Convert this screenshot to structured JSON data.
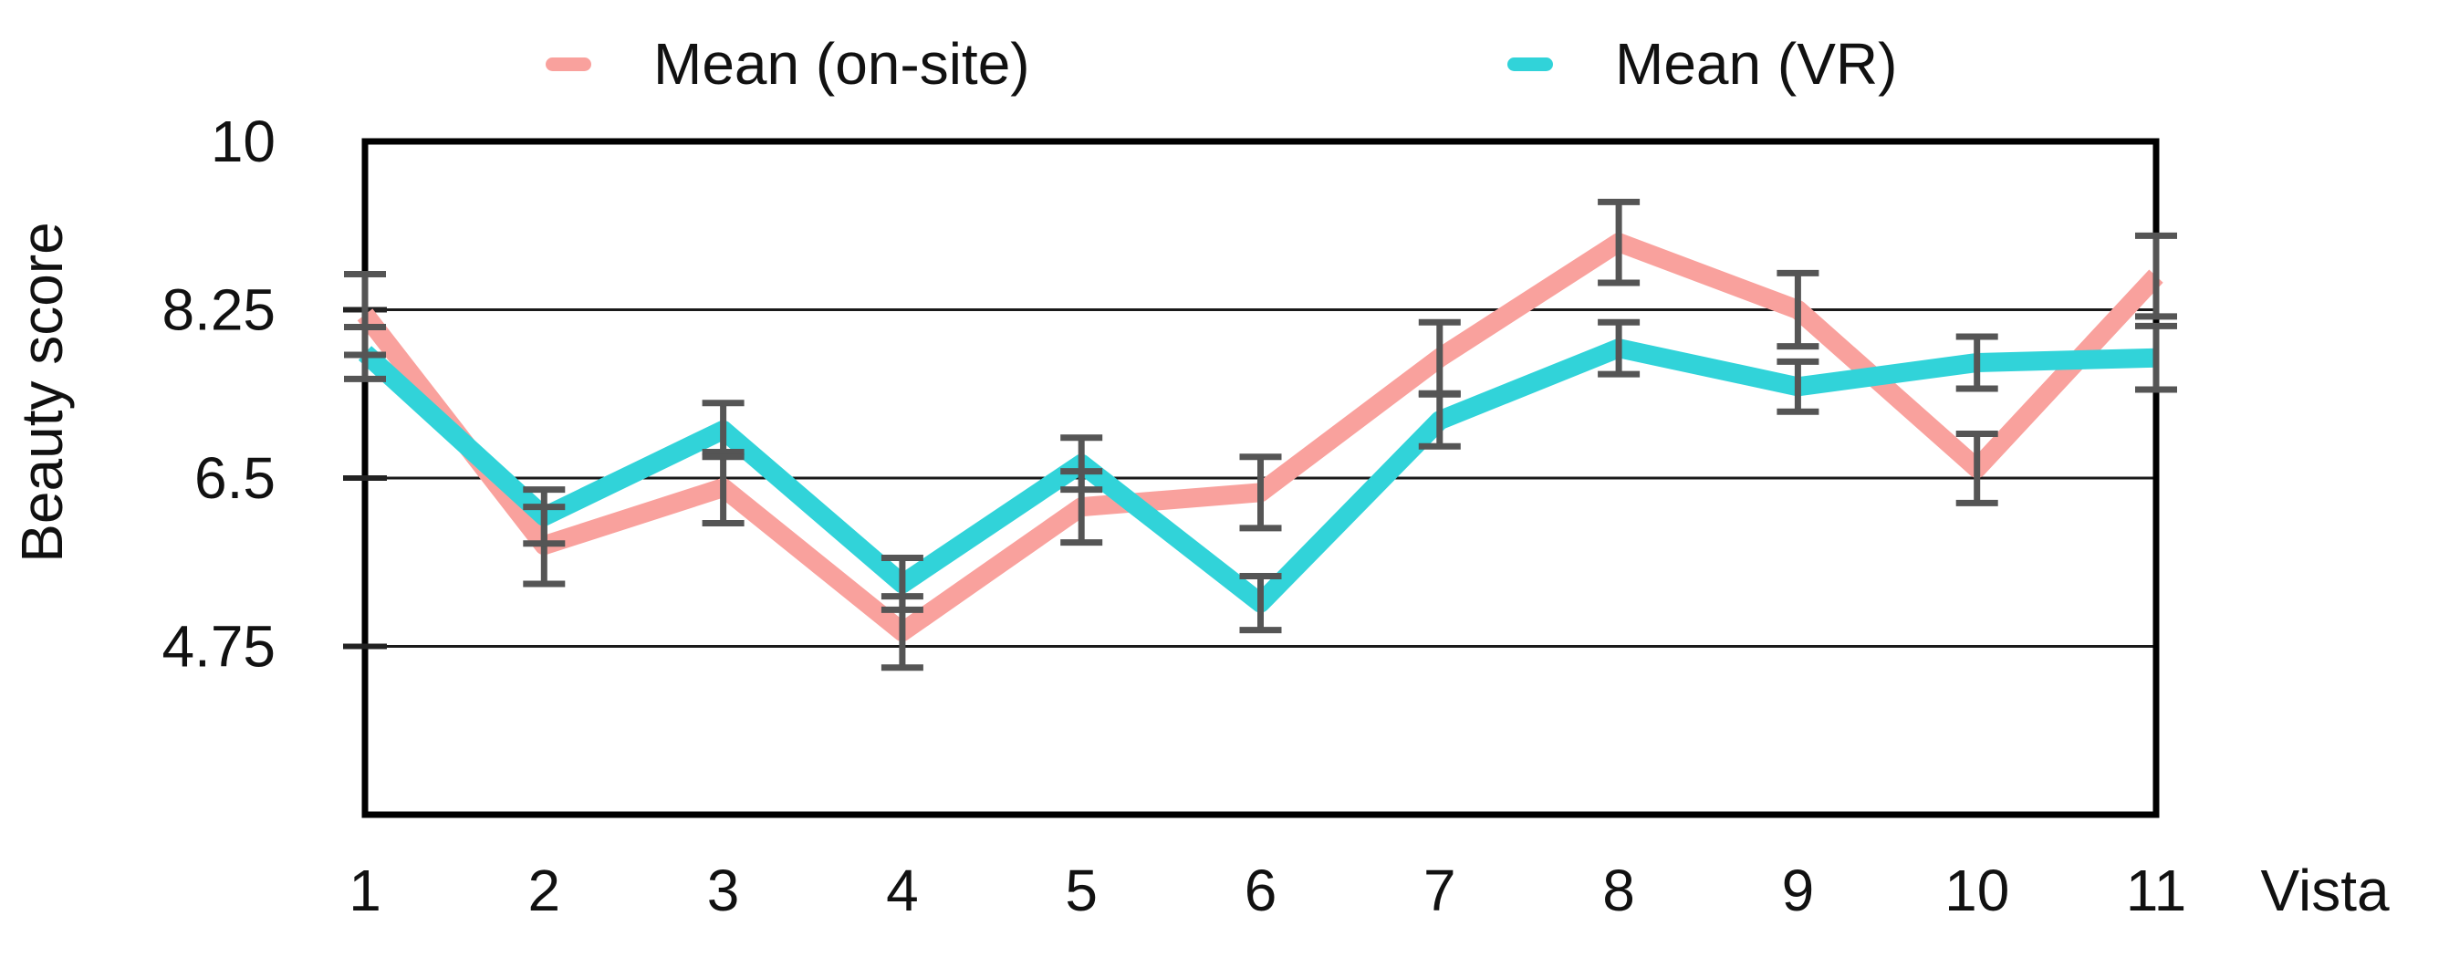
{
  "colors": {
    "series_onsite": "#f9a19d",
    "series_vr": "#31d3d9",
    "error_bar": "#555555",
    "gridline": "#1a1a1a",
    "plot_border": "#000000",
    "text": "#111111",
    "background": "#ffffff"
  },
  "legend": {
    "onsite_label": "Mean (on-site)",
    "vr_label": "Mean (VR)"
  },
  "chart_data": {
    "type": "line",
    "title": "",
    "xlabel": "Vista",
    "ylabel": "Beauty score",
    "x": [
      1,
      2,
      3,
      4,
      5,
      6,
      7,
      8,
      9,
      10,
      11
    ],
    "ylim": [
      3,
      10
    ],
    "yticks": [
      10,
      8.25,
      6.5,
      4.75
    ],
    "ytick_labels": [
      "10",
      "8.25",
      "6.5",
      "4.75"
    ],
    "grid": true,
    "legend_position": "top",
    "error_bars": true,
    "series": [
      {
        "name": "Mean (on-site)",
        "color": "#f9a19d",
        "values": [
          8.2,
          5.8,
          6.4,
          4.9,
          6.2,
          6.35,
          7.75,
          8.95,
          8.25,
          6.6,
          8.6
        ],
        "errors": [
          0.42,
          0.4,
          0.37,
          0.37,
          0.37,
          0.37,
          0.37,
          0.42,
          0.38,
          0.36,
          0.42
        ]
      },
      {
        "name": "Mean (VR)",
        "color": "#31d3d9",
        "values": [
          7.8,
          6.1,
          7.0,
          5.4,
          6.65,
          5.2,
          7.1,
          7.85,
          7.45,
          7.7,
          7.75
        ],
        "errors": [
          0.27,
          0.28,
          0.28,
          0.27,
          0.27,
          0.28,
          0.27,
          0.27,
          0.26,
          0.27,
          0.33
        ]
      }
    ]
  }
}
